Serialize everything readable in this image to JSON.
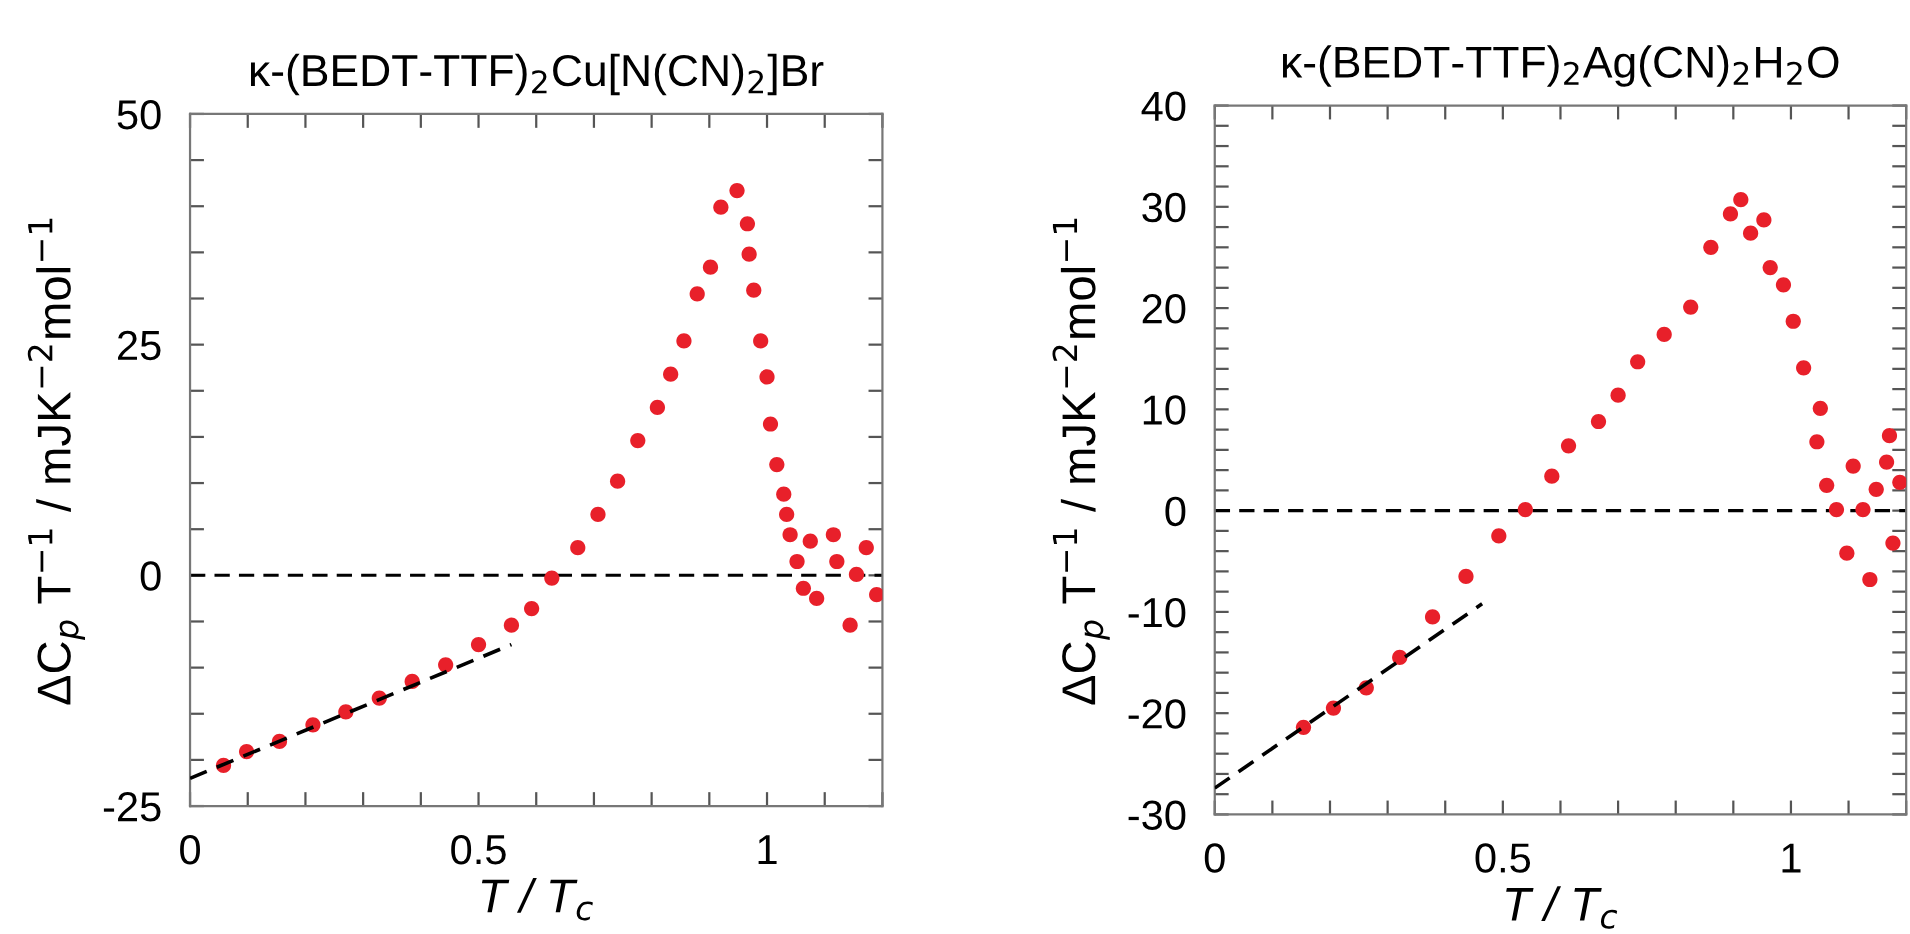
{
  "chart_data": [
    {
      "type": "scatter",
      "title": "κ-(BEDT-TTF)$_{2}$Cu[N(CN)$_{2}$]Br",
      "xlabel": "T / T$_{c}$",
      "ylabel": "ΔC$_{p}$ T$^{−1}$ / mJK$^{−2}$mol$^{−1}$",
      "xlim": [
        0,
        1.2
      ],
      "ylim": [
        -25,
        50
      ],
      "xticks": [
        0,
        {
          "value": 0.1,
          "label": null
        },
        {
          "value": 0.2,
          "label": null
        },
        {
          "value": 0.3,
          "label": null
        },
        {
          "value": 0.4,
          "label": null
        },
        0.5,
        {
          "value": 0.6,
          "label": null
        },
        {
          "value": 0.7,
          "label": null
        },
        {
          "value": 0.8,
          "label": null
        },
        {
          "value": 0.9,
          "label": null
        },
        1,
        {
          "value": 1.1,
          "label": null
        },
        {
          "value": 1.2,
          "label": null
        }
      ],
      "yticks": [
        -25,
        {
          "value": -20,
          "label": null
        },
        {
          "value": -15,
          "label": null
        },
        {
          "value": -10,
          "label": null
        },
        {
          "value": -5,
          "label": null
        },
        0,
        {
          "value": 5,
          "label": null
        },
        {
          "value": 10,
          "label": null
        },
        {
          "value": 15,
          "label": null
        },
        {
          "value": 20,
          "label": null
        },
        25,
        {
          "value": 30,
          "label": null
        },
        {
          "value": 35,
          "label": null
        },
        {
          "value": 40,
          "label": null
        },
        {
          "value": 45,
          "label": null
        },
        50
      ],
      "grid": false,
      "legend": false,
      "marker": "circle",
      "ref_lines": [
        {
          "axis": "y",
          "value": 0,
          "color": "#000000",
          "line_style": "dashed"
        }
      ],
      "series": [
        {
          "color": "#e8202a",
          "x": [
            0.058,
            0.098,
            0.155,
            0.213,
            0.27,
            0.328,
            0.385,
            0.443,
            0.5,
            0.557,
            0.592,
            0.627,
            0.672,
            0.707,
            0.741,
            0.776,
            0.81,
            0.833,
            0.856,
            0.879,
            0.902,
            0.92,
            0.948,
            0.966,
            0.969,
            0.977,
            0.989,
            1.0,
            1.006,
            1.017,
            1.029,
            1.034,
            1.04,
            1.052,
            1.063,
            1.075,
            1.086,
            1.115,
            1.121,
            1.144,
            1.155,
            1.172,
            1.19
          ],
          "values": [
            -20.6,
            -19.1,
            -18.0,
            -16.2,
            -14.8,
            -13.3,
            -11.5,
            -9.7,
            -7.5,
            -5.4,
            -3.6,
            -0.3,
            3.0,
            6.6,
            10.2,
            14.6,
            18.2,
            21.8,
            25.4,
            30.5,
            33.4,
            39.9,
            41.7,
            38.1,
            34.8,
            30.9,
            25.4,
            21.5,
            16.4,
            12.0,
            8.8,
            6.6,
            4.4,
            1.5,
            -1.4,
            3.7,
            -2.5,
            4.4,
            1.5,
            -5.4,
            0.1,
            3.0,
            -2.1
          ]
        },
        {
          "type": "line",
          "color": "#000000",
          "line_style": "dashed",
          "marker": "none",
          "x": [
            0,
            0.557
          ],
          "values": [
            -22.0,
            -7.5
          ]
        }
      ]
    },
    {
      "type": "scatter",
      "title": "κ-(BEDT-TTF)$_{2}$Ag(CN)$_{2}$H$_{2}$O",
      "xlabel": "T / T$_{c}$",
      "ylabel": "ΔC$_{p}$ T$^{−1}$ / mJK$^{−2}$mol$^{−1}$",
      "xlim": [
        0,
        1.2
      ],
      "ylim": [
        -30,
        40
      ],
      "xticks": [
        0,
        {
          "value": 0.1,
          "label": null
        },
        {
          "value": 0.2,
          "label": null
        },
        {
          "value": 0.3,
          "label": null
        },
        {
          "value": 0.4,
          "label": null
        },
        0.5,
        {
          "value": 0.6,
          "label": null
        },
        {
          "value": 0.7,
          "label": null
        },
        {
          "value": 0.8,
          "label": null
        },
        {
          "value": 0.9,
          "label": null
        },
        1,
        {
          "value": 1.1,
          "label": null
        },
        {
          "value": 1.2,
          "label": null
        }
      ],
      "yticks": [
        -30,
        {
          "value": -28,
          "label": null
        },
        {
          "value": -26,
          "label": null
        },
        {
          "value": -24,
          "label": null
        },
        {
          "value": -22,
          "label": null
        },
        -20,
        {
          "value": -18,
          "label": null
        },
        {
          "value": -16,
          "label": null
        },
        {
          "value": -14,
          "label": null
        },
        {
          "value": -12,
          "label": null
        },
        -10,
        {
          "value": -8,
          "label": null
        },
        {
          "value": -6,
          "label": null
        },
        {
          "value": -4,
          "label": null
        },
        {
          "value": -2,
          "label": null
        },
        0,
        {
          "value": 2,
          "label": null
        },
        {
          "value": 4,
          "label": null
        },
        {
          "value": 6,
          "label": null
        },
        {
          "value": 8,
          "label": null
        },
        10,
        {
          "value": 12,
          "label": null
        },
        {
          "value": 14,
          "label": null
        },
        {
          "value": 16,
          "label": null
        },
        {
          "value": 18,
          "label": null
        },
        20,
        {
          "value": 22,
          "label": null
        },
        {
          "value": 24,
          "label": null
        },
        {
          "value": 26,
          "label": null
        },
        {
          "value": 28,
          "label": null
        },
        30,
        {
          "value": 32,
          "label": null
        },
        {
          "value": 34,
          "label": null
        },
        {
          "value": 36,
          "label": null
        },
        {
          "value": 38,
          "label": null
        },
        40
      ],
      "grid": false,
      "legend": false,
      "marker": "circle",
      "ref_lines": [
        {
          "axis": "y",
          "value": 0,
          "color": "#000000",
          "line_style": "dashed"
        }
      ],
      "series": [
        {
          "color": "#e8202a",
          "x": [
            0.154,
            0.206,
            0.263,
            0.321,
            0.378,
            0.436,
            0.493,
            0.539,
            0.585,
            0.614,
            0.666,
            0.7,
            0.734,
            0.78,
            0.826,
            0.861,
            0.895,
            0.913,
            0.93,
            0.953,
            0.964,
            0.987,
            1.004,
            1.022,
            1.051,
            1.045,
            1.062,
            1.079,
            1.097,
            1.108,
            1.137,
            1.125,
            1.148,
            1.166,
            1.171,
            1.177,
            1.189
          ],
          "values": [
            -21.4,
            -19.5,
            -17.5,
            -14.5,
            -10.5,
            -6.5,
            -2.5,
            0.1,
            3.4,
            6.4,
            8.8,
            11.4,
            14.7,
            17.4,
            20.1,
            26.0,
            29.3,
            30.7,
            27.4,
            28.7,
            24.0,
            22.3,
            18.7,
            14.1,
            10.1,
            6.8,
            2.5,
            0.1,
            -4.2,
            4.4,
            -6.8,
            0.1,
            2.1,
            4.8,
            7.4,
            -3.2,
            2.8
          ]
        },
        {
          "type": "line",
          "color": "#000000",
          "line_style": "dashed",
          "marker": "none",
          "x": [
            0,
            0.464
          ],
          "values": [
            -27.4,
            -9.2
          ]
        }
      ]
    }
  ]
}
